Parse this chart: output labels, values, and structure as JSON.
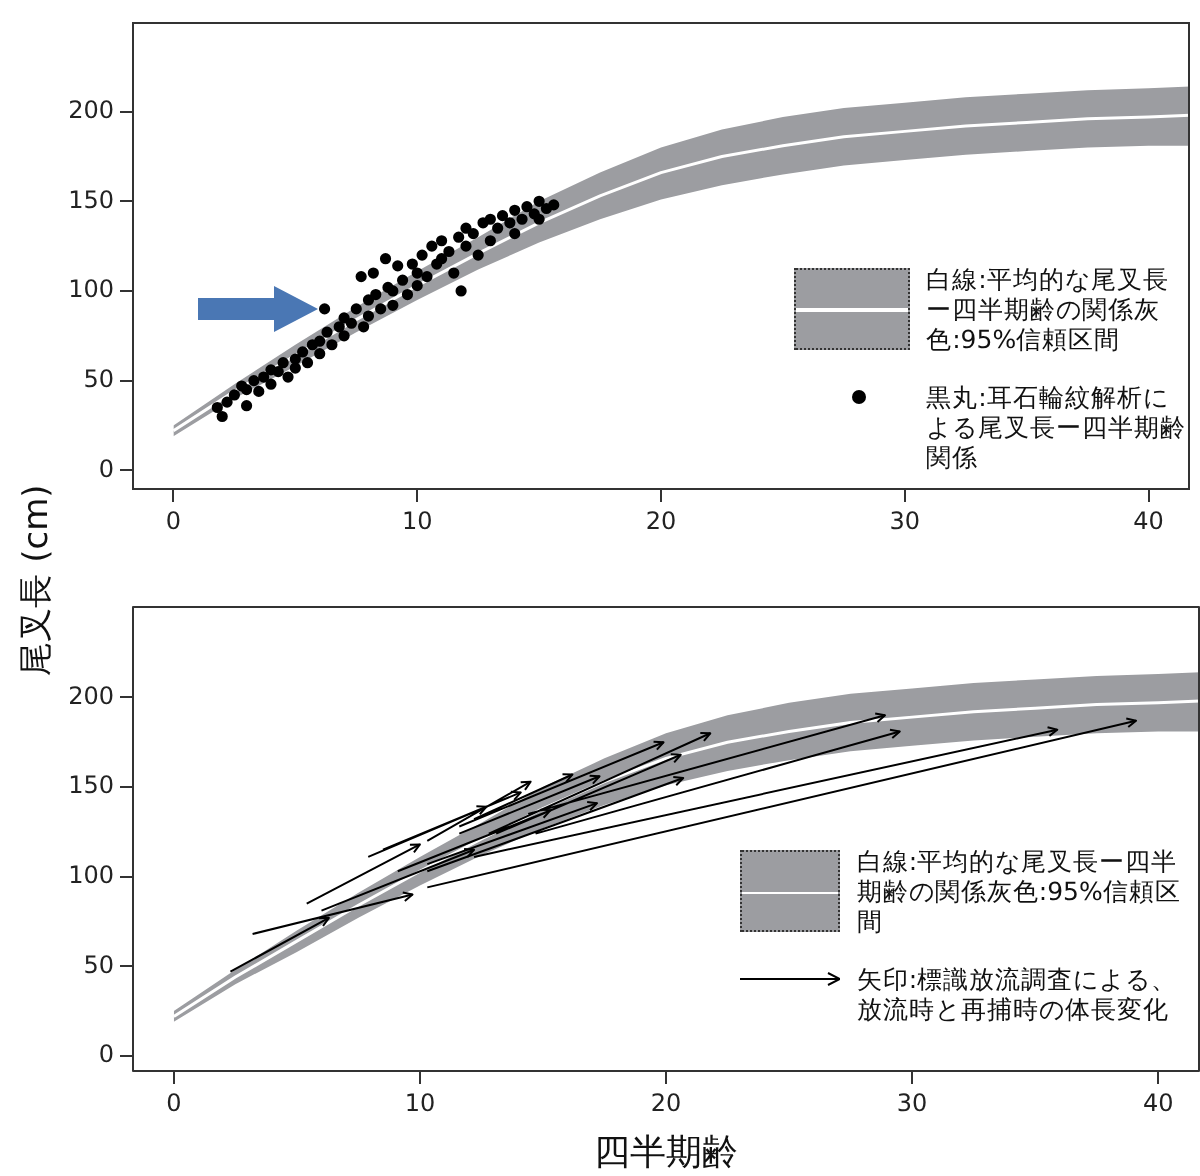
{
  "chart_data": [
    {
      "type": "line",
      "ylabel": "尾叉長 (cm)",
      "x": [
        0,
        2.5,
        5,
        7.5,
        10,
        12.5,
        15,
        17.5,
        20,
        22.5,
        25,
        27.5,
        30,
        32.5,
        35,
        37.5,
        40,
        41.7
      ],
      "xlim": [
        -1.7,
        41.7
      ],
      "ylim": [
        -11,
        250
      ],
      "xticks": [
        0,
        10,
        20,
        30,
        40
      ],
      "yticks": [
        0,
        50,
        100,
        150,
        200
      ],
      "grid": false,
      "legend": "right",
      "series": [
        {
          "name": "白線:平均的な尾叉長ー四半期齢の関係灰色:95%信頼区間",
          "color": "#ffffff",
          "values": [
            22,
            44,
            64,
            84,
            103,
            121,
            138,
            153,
            166,
            175,
            181,
            186,
            189,
            192,
            194,
            196,
            197,
            198
          ],
          "lower": [
            19,
            40,
            58,
            77,
            95,
            112,
            127,
            140,
            151,
            159,
            165,
            170,
            173,
            176,
            178,
            180,
            181,
            181
          ],
          "upper": [
            25,
            48,
            70,
            91,
            111,
            130,
            150,
            166,
            180,
            190,
            197,
            202,
            205,
            208,
            210,
            212,
            213,
            214
          ]
        },
        {
          "name": "黒丸:耳石輪紋解析による尾叉長ー四半期齢関係",
          "type": "scatter",
          "color": "#000000",
          "marker": "circle",
          "x": [
            1.8,
            2,
            2.2,
            2.5,
            2.8,
            3,
            3,
            3.3,
            3.5,
            3.7,
            4,
            4,
            4.3,
            4.5,
            4.7,
            5,
            5,
            5.3,
            5.5,
            5.7,
            6,
            6,
            6.2,
            6.3,
            6.5,
            6.8,
            7,
            7,
            7.3,
            7.5,
            7.7,
            7.8,
            8,
            8,
            8.2,
            8.3,
            8.5,
            8.7,
            8.8,
            9,
            9,
            9.2,
            9.4,
            9.6,
            9.8,
            10,
            10,
            10.2,
            10.4,
            10.6,
            10.8,
            11,
            11,
            11.3,
            11.5,
            11.7,
            11.8,
            12,
            12,
            12.3,
            12.5,
            12.7,
            13,
            13,
            13.3,
            13.5,
            13.8,
            14,
            14,
            14.3,
            14.5,
            14.8,
            15,
            15,
            15.3,
            15.6
          ],
          "values": [
            35,
            30,
            38,
            42,
            47,
            36,
            45,
            50,
            44,
            52,
            48,
            56,
            55,
            60,
            52,
            62,
            57,
            66,
            60,
            70,
            72,
            65,
            90,
            77,
            70,
            80,
            85,
            75,
            82,
            90,
            108,
            80,
            95,
            86,
            110,
            98,
            90,
            118,
            102,
            100,
            92,
            114,
            106,
            98,
            115,
            110,
            103,
            120,
            108,
            125,
            115,
            118,
            128,
            122,
            110,
            130,
            100,
            125,
            135,
            132,
            120,
            138,
            128,
            140,
            135,
            142,
            138,
            145,
            132,
            140,
            147,
            143,
            150,
            140,
            146,
            148
          ]
        }
      ]
    },
    {
      "type": "line",
      "xlabel": "四半期齢",
      "x": [
        0,
        2.5,
        5,
        7.5,
        10,
        12.5,
        15,
        17.5,
        20,
        22.5,
        25,
        27.5,
        30,
        32.5,
        35,
        37.5,
        40,
        41.7
      ],
      "xlim": [
        -1.7,
        41.7
      ],
      "ylim": [
        -9,
        251
      ],
      "xticks": [
        0,
        10,
        20,
        30,
        40
      ],
      "yticks": [
        0,
        50,
        100,
        150,
        200
      ],
      "grid": false,
      "legend": "right",
      "series": [
        {
          "name": "白線:平均的な尾叉長ー四半期齢の関係灰色:95%信頼区間",
          "color": "#ffffff",
          "values": [
            22,
            44,
            64,
            84,
            103,
            121,
            138,
            153,
            166,
            175,
            181,
            186,
            189,
            192,
            194,
            196,
            197,
            198
          ],
          "lower": [
            19,
            40,
            58,
            77,
            95,
            112,
            127,
            140,
            151,
            159,
            165,
            170,
            173,
            176,
            178,
            180,
            181,
            181
          ],
          "upper": [
            25,
            48,
            70,
            91,
            111,
            130,
            150,
            166,
            180,
            190,
            197,
            202,
            205,
            208,
            210,
            212,
            213,
            214
          ]
        },
        {
          "name": "矢印:標識放流調査による、放流時と再捕時の体長変化",
          "color": "#000000",
          "x": [
            10.3,
            39.1,
            null,
            12.2,
            35.9,
            null,
            14.7,
            29.5,
            null,
            14.4,
            28.9,
            null,
            10.3,
            20.7,
            null,
            12.8,
            21.8,
            null,
            11.6,
            19.9,
            null,
            13.1,
            20.6,
            null,
            11.6,
            17.3,
            null,
            12.2,
            16.2,
            null,
            10.3,
            14.5,
            null,
            8.5,
            14.1,
            null,
            7.9,
            12.7,
            null,
            5.4,
            10,
            null,
            3.2,
            9.7,
            null,
            2.3,
            6.3,
            null,
            10.3,
            17.2,
            null,
            9.1,
            15.3,
            null,
            6,
            12.2
          ],
          "values": [
            94,
            187,
            null,
            111,
            182,
            null,
            124,
            181,
            null,
            135,
            190,
            null,
            103,
            155,
            null,
            124,
            180,
            null,
            128,
            175,
            null,
            124,
            168,
            null,
            124,
            156,
            null,
            132,
            157,
            null,
            120,
            153,
            null,
            115,
            147,
            null,
            111,
            139,
            null,
            85,
            118,
            null,
            68,
            90,
            null,
            47,
            77,
            null,
            107,
            141,
            null,
            103,
            137,
            null,
            81,
            115
          ]
        }
      ]
    }
  ]
}
